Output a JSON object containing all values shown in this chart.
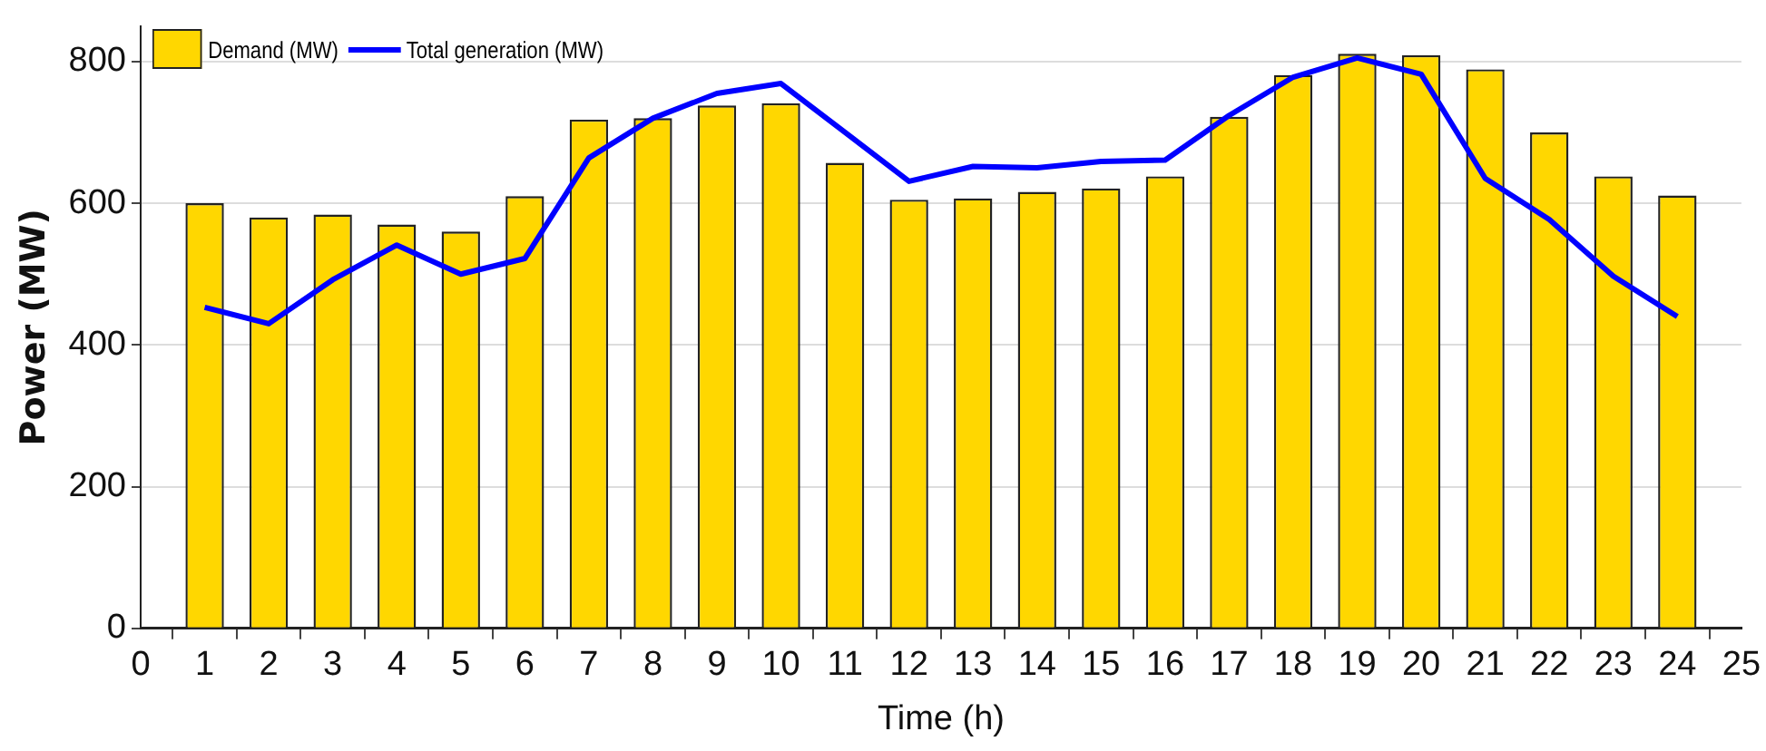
{
  "chart_data": {
    "type": "bar",
    "xlabel": "Time (h)",
    "ylabel": "Power (MW)",
    "x": [
      1,
      2,
      3,
      4,
      5,
      6,
      7,
      8,
      9,
      10,
      11,
      12,
      13,
      14,
      15,
      16,
      17,
      18,
      19,
      20,
      21,
      22,
      23,
      24
    ],
    "series": [
      {
        "name": "Demand (MW)",
        "color": "#ffd700",
        "values": [
          600,
          580,
          584,
          570,
          560,
          610,
          718,
          720,
          738,
          741,
          657,
          605,
          607,
          616,
          621,
          638,
          722,
          781,
          811,
          809,
          789,
          700,
          638,
          611
        ]
      },
      {
        "name": "Total generation (MW)",
        "type": "line",
        "color": "#0000ff",
        "values": [
          453,
          430,
          492,
          541,
          500,
          522,
          664,
          720,
          755,
          769,
          700,
          631,
          652,
          650,
          659,
          661,
          724,
          778,
          805,
          782,
          635,
          577,
          497,
          440
        ]
      }
    ],
    "xlim": [
      0,
      25
    ],
    "xticks": [
      0,
      1,
      2,
      3,
      4,
      5,
      6,
      7,
      8,
      9,
      10,
      11,
      12,
      13,
      14,
      15,
      16,
      17,
      18,
      19,
      20,
      21,
      22,
      23,
      24,
      25
    ],
    "ylim": [
      0,
      850
    ],
    "yticks": [
      0,
      200,
      400,
      600,
      800
    ],
    "grid": "y",
    "legend": "top left",
    "line_style": "solid",
    "marker": "none"
  }
}
